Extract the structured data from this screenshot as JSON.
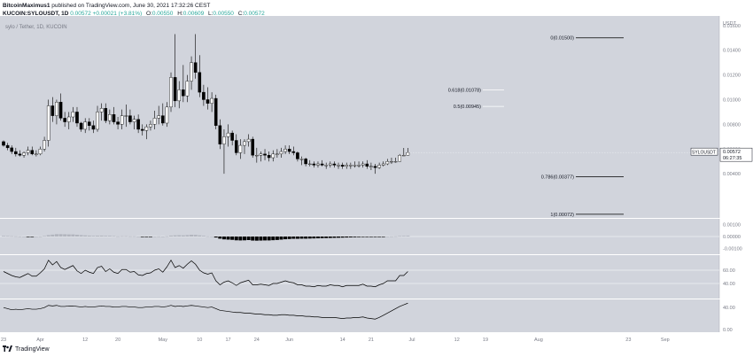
{
  "header": {
    "author": "BitcoinMaximus1",
    "published_text": "published on TradingView.com, June 30, 2021 17:32:26 CEST",
    "symbol": "KUCOIN:SYLOUSDT, 1D",
    "price": "0.00572",
    "change": "+0.00021 (+3.81%)",
    "open_label": "O:",
    "open": "0.00550",
    "high_label": "H:",
    "high": "0.00609",
    "low_label": "L:",
    "low": "0.00550",
    "close_label": "C:",
    "close": "0.00572"
  },
  "pane_title": "sylo / Tether, 1D, KUCOIN",
  "price_axis": {
    "unit": "USDT",
    "ticks": [
      "0.01600",
      "0.01400",
      "0.01200",
      "0.01000",
      "0.00800",
      "0.00600",
      "0.00400"
    ],
    "last_price_label": "SYLOUSDT",
    "last_price": "0.00572",
    "countdown": "06:27:35"
  },
  "fib_levels": [
    {
      "label": "0(0.01500)",
      "value": 0.015
    },
    {
      "label": "0.618(0.01078)",
      "value": 0.01078
    },
    {
      "label": "0.5(0.00945)",
      "value": 0.00945
    },
    {
      "label": "0.786(0.00377)",
      "value": 0.00377
    },
    {
      "label": "1(0.00072)",
      "value": 0.00072
    }
  ],
  "macd_axis": [
    "0.00100",
    "0.00000",
    "-0.00100"
  ],
  "rsi_axis": [
    "60.00",
    "40.00"
  ],
  "stoch_axis": [
    "40.00",
    "0.00"
  ],
  "time_axis": [
    "23",
    "Apr",
    "12",
    "20",
    "May",
    "10",
    "17",
    "24",
    "Jun",
    "14",
    "21",
    "Jul",
    "12",
    "19",
    "Aug",
    "23",
    "Sep"
  ],
  "footer": {
    "brand": "TradingView"
  },
  "colors": {
    "up": "#ffffff",
    "down": "#000000",
    "pane_bg": "#d1d4dc",
    "separator": "#ffffff",
    "macd_positive": "#b2b5be",
    "macd_negative": "#000000"
  },
  "chart_data": {
    "type": "candlestick",
    "x": [
      "2021-03-23",
      "2021-03-24",
      "2021-03-25",
      "2021-03-26",
      "2021-03-27",
      "2021-03-28",
      "2021-03-29",
      "2021-03-30",
      "2021-03-31",
      "2021-04-01",
      "2021-04-02",
      "2021-04-03",
      "2021-04-04",
      "2021-04-05",
      "2021-04-06",
      "2021-04-07",
      "2021-04-08",
      "2021-04-09",
      "2021-04-10",
      "2021-04-11",
      "2021-04-12",
      "2021-04-13",
      "2021-04-14",
      "2021-04-15",
      "2021-04-16",
      "2021-04-17",
      "2021-04-18",
      "2021-04-19",
      "2021-04-20",
      "2021-04-21",
      "2021-04-22",
      "2021-04-23",
      "2021-04-24",
      "2021-04-25",
      "2021-04-26",
      "2021-04-27",
      "2021-04-28",
      "2021-04-29",
      "2021-04-30",
      "2021-05-01",
      "2021-05-02",
      "2021-05-03",
      "2021-05-04",
      "2021-05-05",
      "2021-05-06",
      "2021-05-07",
      "2021-05-08",
      "2021-05-09",
      "2021-05-10",
      "2021-05-11",
      "2021-05-12",
      "2021-05-13",
      "2021-05-14",
      "2021-05-15",
      "2021-05-16",
      "2021-05-17",
      "2021-05-18",
      "2021-05-19",
      "2021-05-20",
      "2021-05-21",
      "2021-05-22",
      "2021-05-23",
      "2021-05-24",
      "2021-05-25",
      "2021-05-26",
      "2021-05-27",
      "2021-05-28",
      "2021-05-29",
      "2021-05-30",
      "2021-05-31",
      "2021-06-01",
      "2021-06-02",
      "2021-06-03",
      "2021-06-04",
      "2021-06-05",
      "2021-06-06",
      "2021-06-07",
      "2021-06-08",
      "2021-06-09",
      "2021-06-10",
      "2021-06-11",
      "2021-06-12",
      "2021-06-13",
      "2021-06-14",
      "2021-06-15",
      "2021-06-16",
      "2021-06-17",
      "2021-06-18",
      "2021-06-19",
      "2021-06-20",
      "2021-06-21",
      "2021-06-22",
      "2021-06-23",
      "2021-06-24",
      "2021-06-25",
      "2021-06-26",
      "2021-06-27",
      "2021-06-28",
      "2021-06-29",
      "2021-06-30"
    ],
    "open": [
      0.0066,
      0.0063,
      0.0061,
      0.0058,
      0.0056,
      0.0055,
      0.0057,
      0.0059,
      0.0056,
      0.0056,
      0.006,
      0.0067,
      0.0095,
      0.0087,
      0.0098,
      0.0085,
      0.0082,
      0.0086,
      0.009,
      0.0081,
      0.0076,
      0.0082,
      0.0079,
      0.0076,
      0.009,
      0.0093,
      0.0083,
      0.0088,
      0.0082,
      0.008,
      0.0087,
      0.0087,
      0.0082,
      0.0084,
      0.0076,
      0.0075,
      0.0078,
      0.008,
      0.0085,
      0.0087,
      0.0081,
      0.0094,
      0.0118,
      0.0099,
      0.0108,
      0.0103,
      0.0115,
      0.013,
      0.0122,
      0.0106,
      0.01,
      0.0097,
      0.0101,
      0.0079,
      0.0064,
      0.007,
      0.0073,
      0.0067,
      0.0057,
      0.0063,
      0.0066,
      0.0068,
      0.0055,
      0.0055,
      0.0056,
      0.0055,
      0.0053,
      0.0056,
      0.0056,
      0.0058,
      0.006,
      0.0058,
      0.0057,
      0.0052,
      0.0052,
      0.0048,
      0.0048,
      0.0047,
      0.0048,
      0.0047,
      0.0047,
      0.0048,
      0.0047,
      0.0047,
      0.0046,
      0.0047,
      0.0047,
      0.0047,
      0.0047,
      0.0048,
      0.0046,
      0.0046,
      0.0045,
      0.0047,
      0.0048,
      0.005,
      0.005,
      0.005,
      0.0055,
      0.0055
    ],
    "high": [
      0.0067,
      0.0065,
      0.0063,
      0.0061,
      0.0059,
      0.0058,
      0.0062,
      0.0062,
      0.0059,
      0.0062,
      0.007,
      0.01,
      0.0102,
      0.01,
      0.0105,
      0.009,
      0.009,
      0.0094,
      0.0094,
      0.0082,
      0.0085,
      0.0085,
      0.0083,
      0.0095,
      0.0097,
      0.0097,
      0.0092,
      0.0094,
      0.0086,
      0.0092,
      0.0096,
      0.0092,
      0.0087,
      0.0088,
      0.008,
      0.008,
      0.0083,
      0.0091,
      0.0095,
      0.0097,
      0.0098,
      0.0122,
      0.0153,
      0.0115,
      0.0128,
      0.012,
      0.0135,
      0.0153,
      0.0136,
      0.0112,
      0.011,
      0.0106,
      0.0104,
      0.0084,
      0.0076,
      0.008,
      0.0075,
      0.0072,
      0.0068,
      0.0068,
      0.0072,
      0.007,
      0.0061,
      0.0058,
      0.006,
      0.0058,
      0.0059,
      0.006,
      0.0061,
      0.0063,
      0.0063,
      0.0062,
      0.0058,
      0.0054,
      0.0053,
      0.0051,
      0.005,
      0.005,
      0.0051,
      0.0049,
      0.005,
      0.005,
      0.0049,
      0.0049,
      0.0049,
      0.0049,
      0.005,
      0.005,
      0.005,
      0.0051,
      0.0049,
      0.0048,
      0.0049,
      0.005,
      0.0052,
      0.0053,
      0.0053,
      0.0056,
      0.00609,
      0.00609
    ],
    "low": [
      0.0062,
      0.0059,
      0.0056,
      0.0054,
      0.0054,
      0.0053,
      0.0055,
      0.0055,
      0.0054,
      0.0055,
      0.0058,
      0.0062,
      0.0082,
      0.008,
      0.0083,
      0.0078,
      0.0076,
      0.0082,
      0.0078,
      0.0074,
      0.0073,
      0.0075,
      0.0073,
      0.0074,
      0.0083,
      0.0081,
      0.008,
      0.008,
      0.0076,
      0.0076,
      0.0078,
      0.008,
      0.0076,
      0.0073,
      0.0071,
      0.0068,
      0.0075,
      0.0076,
      0.008,
      0.0079,
      0.0078,
      0.009,
      0.0094,
      0.0093,
      0.0098,
      0.0098,
      0.0108,
      0.0117,
      0.0102,
      0.0095,
      0.0092,
      0.009,
      0.0076,
      0.006,
      0.004,
      0.0062,
      0.0063,
      0.0055,
      0.0052,
      0.0056,
      0.0062,
      0.0053,
      0.0049,
      0.005,
      0.0051,
      0.005,
      0.005,
      0.0053,
      0.0053,
      0.0056,
      0.0056,
      0.0055,
      0.005,
      0.0047,
      0.0046,
      0.0046,
      0.0045,
      0.0045,
      0.0046,
      0.0044,
      0.0045,
      0.0045,
      0.0044,
      0.0044,
      0.0044,
      0.0044,
      0.0045,
      0.0045,
      0.0045,
      0.0044,
      0.0043,
      0.004,
      0.0044,
      0.0046,
      0.0047,
      0.0048,
      0.0049,
      0.005,
      0.0055,
      0.0055
    ],
    "close": [
      0.0063,
      0.0061,
      0.0058,
      0.0056,
      0.0055,
      0.0057,
      0.0059,
      0.0056,
      0.0056,
      0.006,
      0.0067,
      0.0095,
      0.0087,
      0.0098,
      0.0085,
      0.0082,
      0.0086,
      0.009,
      0.0081,
      0.0076,
      0.0082,
      0.0079,
      0.0076,
      0.009,
      0.0093,
      0.0083,
      0.0088,
      0.0082,
      0.008,
      0.0087,
      0.0087,
      0.0082,
      0.0084,
      0.0076,
      0.0075,
      0.0078,
      0.008,
      0.0085,
      0.0087,
      0.0081,
      0.0094,
      0.0118,
      0.0099,
      0.0108,
      0.0103,
      0.0115,
      0.013,
      0.0122,
      0.0106,
      0.01,
      0.0097,
      0.0101,
      0.0079,
      0.0064,
      0.007,
      0.0073,
      0.0067,
      0.0057,
      0.0063,
      0.0066,
      0.0068,
      0.0055,
      0.0055,
      0.0056,
      0.0055,
      0.0053,
      0.0056,
      0.0056,
      0.0058,
      0.006,
      0.0058,
      0.0057,
      0.0052,
      0.0052,
      0.0048,
      0.0048,
      0.0047,
      0.0048,
      0.0047,
      0.0047,
      0.0048,
      0.0047,
      0.0047,
      0.0046,
      0.0047,
      0.0047,
      0.0047,
      0.0047,
      0.0048,
      0.0046,
      0.0046,
      0.0045,
      0.0047,
      0.0048,
      0.005,
      0.005,
      0.005,
      0.0055,
      0.0055,
      0.00572
    ],
    "macd_histogram": [
      5e-05,
      4e-05,
      3e-05,
      2e-05,
      1e-05,
      0.0,
      -1e-05,
      -1e-05,
      0.0,
      1e-05,
      4e-05,
      0.00012,
      0.00016,
      0.0002,
      0.0002,
      0.00019,
      0.00018,
      0.00018,
      0.00015,
      0.00012,
      0.0001,
      8e-05,
      6e-05,
      7e-05,
      8e-05,
      6e-05,
      6e-05,
      4e-05,
      2e-05,
      3e-05,
      3e-05,
      2e-05,
      2e-05,
      0.0,
      -1e-05,
      -1e-05,
      -1e-05,
      0.0,
      1e-05,
      0.0,
      2e-05,
      8e-05,
      0.0001,
      0.00011,
      0.0001,
      0.00012,
      0.00015,
      0.00014,
      0.0001,
      6e-05,
      2e-05,
      1e-05,
      -8e-05,
      -0.00018,
      -0.00024,
      -0.00026,
      -0.00028,
      -0.00032,
      -0.00033,
      -0.00032,
      -0.0003,
      -0.00034,
      -0.00035,
      -0.00034,
      -0.00033,
      -0.00033,
      -0.00031,
      -0.00029,
      -0.00026,
      -0.00023,
      -0.00021,
      -0.00019,
      -0.00019,
      -0.00018,
      -0.00018,
      -0.00017,
      -0.00016,
      -0.00015,
      -0.00014,
      -0.00013,
      -0.00012,
      -0.00011,
      -0.0001,
      -9e-05,
      -8e-05,
      -7e-05,
      -6e-05,
      -5e-05,
      -4e-05,
      -4e-05,
      -3e-05,
      -3e-05,
      -2e-05,
      -1e-05,
      0.0,
      1e-05,
      2e-05,
      4e-05,
      5e-05,
      6e-05
    ],
    "rsi": [
      58,
      55,
      52,
      50,
      49,
      52,
      55,
      51,
      51,
      56,
      62,
      75,
      68,
      73,
      64,
      61,
      64,
      67,
      59,
      55,
      60,
      57,
      55,
      64,
      66,
      58,
      62,
      57,
      55,
      61,
      61,
      57,
      58,
      53,
      52,
      55,
      56,
      60,
      62,
      57,
      65,
      75,
      64,
      67,
      63,
      69,
      74,
      69,
      60,
      56,
      54,
      56,
      44,
      38,
      42,
      44,
      41,
      37,
      41,
      43,
      45,
      38,
      38,
      39,
      38,
      37,
      40,
      40,
      42,
      44,
      42,
      41,
      38,
      38,
      36,
      36,
      35,
      37,
      36,
      36,
      38,
      37,
      37,
      35,
      37,
      37,
      37,
      37,
      39,
      36,
      36,
      35,
      38,
      40,
      44,
      44,
      44,
      52,
      52,
      58
    ],
    "stoch_rsi": [
      40,
      38,
      36,
      37,
      36,
      37,
      38,
      37,
      37,
      38,
      40,
      44,
      43,
      44,
      42,
      42,
      43,
      43,
      42,
      41,
      42,
      41,
      41,
      42,
      43,
      42,
      42,
      41,
      41,
      42,
      42,
      41,
      41,
      40,
      40,
      41,
      41,
      42,
      42,
      41,
      42,
      44,
      42,
      43,
      42,
      43,
      44,
      43,
      42,
      41,
      40,
      41,
      38,
      35,
      34,
      33,
      32,
      31,
      31,
      30,
      30,
      29,
      28,
      28,
      27,
      27,
      26,
      26,
      27,
      27,
      26,
      26,
      25,
      25,
      24,
      24,
      23,
      23,
      22,
      22,
      22,
      22,
      21,
      20,
      21,
      21,
      22,
      22,
      23,
      21,
      20,
      19,
      22,
      26,
      30,
      34,
      38,
      42,
      45,
      48
    ]
  }
}
